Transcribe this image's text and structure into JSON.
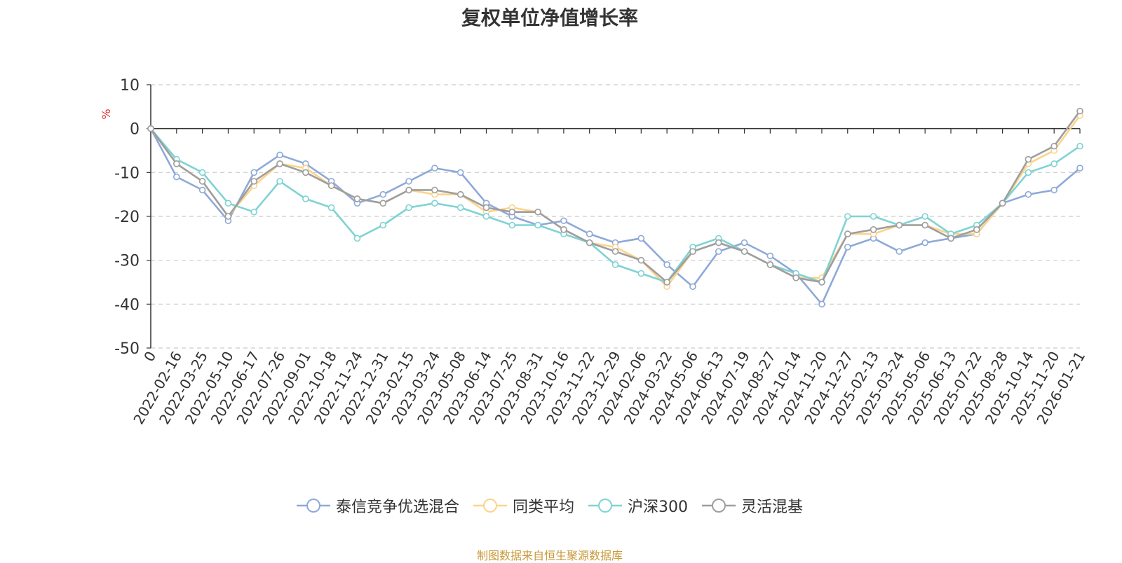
{
  "chart_data": {
    "type": "line",
    "title": "复权单位净值增长率",
    "ylabel": "%",
    "ylim": [
      -50,
      10
    ],
    "yticks": [
      10,
      0,
      -10,
      -20,
      -30,
      -40,
      -50
    ],
    "grid": true,
    "legend_position": "bottom-center",
    "x_tick_labels": [
      "0",
      "2022-02-16",
      "2022-03-25",
      "2022-05-10",
      "2022-06-17",
      "2022-07-26",
      "2022-09-01",
      "2022-10-18",
      "2022-11-24",
      "2022-12-31",
      "2023-02-15",
      "2023-03-24",
      "2023-05-08",
      "2023-06-14",
      "2023-07-25",
      "2023-08-31",
      "2023-10-16",
      "2023-11-22",
      "2023-12-29",
      "2024-02-06",
      "2024-03-22",
      "2024-05-06",
      "2024-06-13",
      "2024-07-19",
      "2024-08-27",
      "2024-10-14",
      "2024-11-20",
      "2024-12-27",
      "2025-02-13",
      "2025-03-24",
      "2025-05-06",
      "2025-06-13",
      "2025-07-22",
      "2025-08-28",
      "2025-10-14",
      "2025-11-20",
      "2026-01-21"
    ],
    "series": [
      {
        "name": "泰信竞争优选混合",
        "color": "#8ea9d8",
        "values": [
          0,
          -11,
          -14,
          -21,
          -10,
          -6,
          -8,
          -12,
          -17,
          -15,
          -12,
          -9,
          -10,
          -17,
          -20,
          -22,
          -21,
          -24,
          -26,
          -25,
          -31,
          -36,
          -28,
          -26,
          -29,
          -33,
          -40,
          -27,
          -25,
          -28,
          -26,
          -25,
          -24,
          -17,
          -15,
          -14,
          -9
        ]
      },
      {
        "name": "同类平均",
        "color": "#fbd48b",
        "values": [
          0,
          -8,
          -12,
          -20,
          -13,
          -8,
          -9,
          -13,
          -16,
          -17,
          -14,
          -15,
          -15,
          -19,
          -18,
          -19,
          -23,
          -26,
          -27,
          -30,
          -36,
          -28,
          -26,
          -28,
          -31,
          -34,
          -34,
          -24,
          -24,
          -22,
          -22,
          -24,
          -24,
          -17,
          -8,
          -5,
          3
        ]
      },
      {
        "name": "沪深300",
        "color": "#7fd3d3",
        "values": [
          0,
          -7,
          -10,
          -17,
          -19,
          -12,
          -16,
          -18,
          -25,
          -22,
          -18,
          -17,
          -18,
          -20,
          -22,
          -22,
          -24,
          -26,
          -31,
          -33,
          -35,
          -27,
          -25,
          -28,
          -31,
          -33,
          -35,
          -20,
          -20,
          -22,
          -20,
          -24,
          -22,
          -17,
          -10,
          -8,
          -4
        ]
      },
      {
        "name": "灵活混基",
        "color": "#9e9e9e",
        "values": [
          0,
          -8,
          -12,
          -20,
          -12,
          -8,
          -10,
          -13,
          -16,
          -17,
          -14,
          -14,
          -15,
          -18,
          -19,
          -19,
          -23,
          -26,
          -28,
          -30,
          -35,
          -28,
          -26,
          -28,
          -31,
          -34,
          -35,
          -24,
          -23,
          -22,
          -22,
          -25,
          -23,
          -17,
          -7,
          -4,
          4
        ]
      }
    ]
  },
  "source_note": "制图数据来自恒生聚源数据库"
}
